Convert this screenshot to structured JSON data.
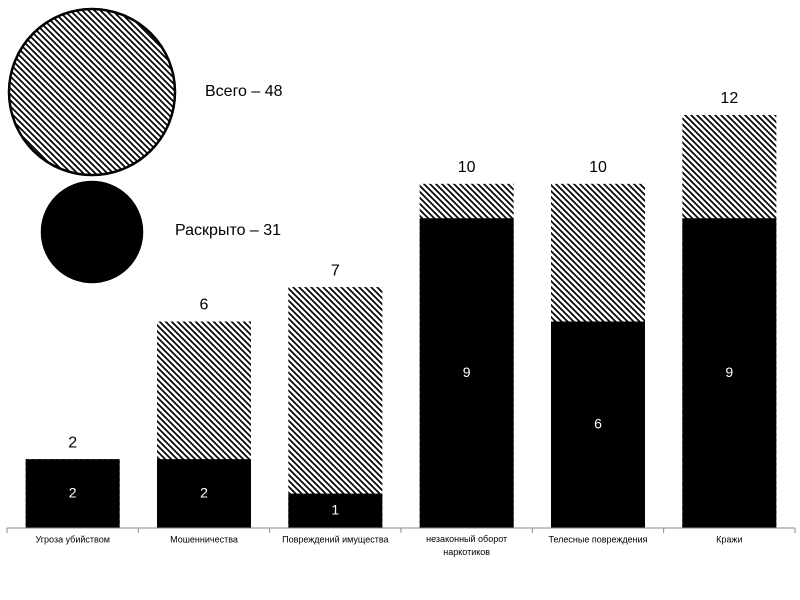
{
  "chart_data": {
    "type": "overlap-bar",
    "categories": [
      "Угроза убийством",
      "Мошенничества",
      "Повреждений имущества",
      "незаконный оборот наркотиков",
      "Телесные повреждения",
      "Кражи"
    ],
    "series": [
      {
        "name": "Всего – 48",
        "color": "#000000",
        "fill": "hatch",
        "values": [
          2,
          6,
          7,
          10,
          10,
          12
        ]
      },
      {
        "name": "Раскрыто – 31",
        "color": "#000000",
        "fill": "solid",
        "values": [
          2,
          2,
          1,
          9,
          6,
          9
        ]
      }
    ]
  }
}
